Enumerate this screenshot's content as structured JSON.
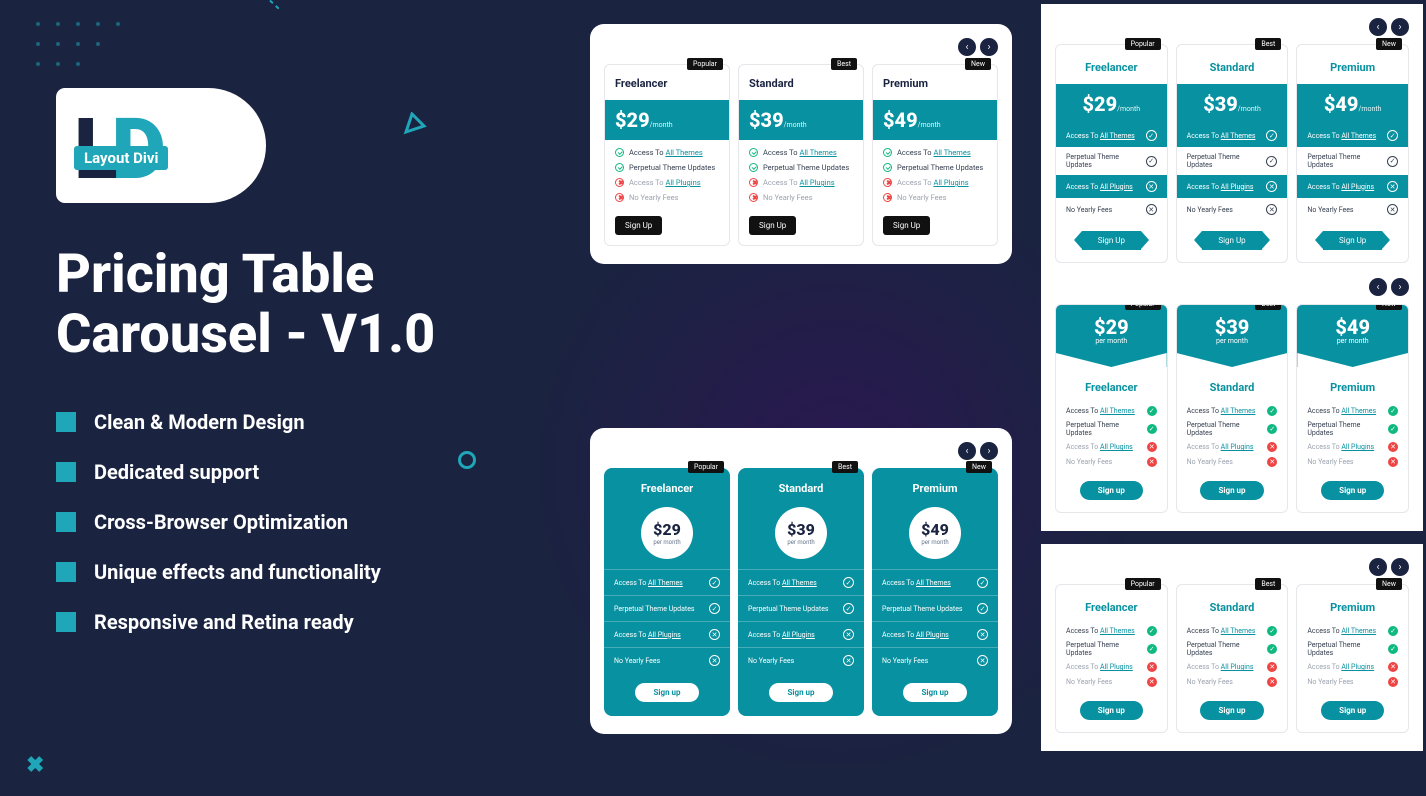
{
  "logo": {
    "text": "Layout Divi"
  },
  "headline": "Pricing Table Carousel - V1.0",
  "features": [
    "Clean & Modern Design",
    "Dedicated support",
    "Cross-Browser Optimization",
    "Unique effects and functionality",
    "Responsive and Retina ready"
  ],
  "colors": {
    "bg": "#1a2340",
    "accent": "#1fa6b8",
    "teal": "#0891a0",
    "green": "#10b981",
    "red": "#ef4444"
  },
  "plans": [
    {
      "badge": "Popular",
      "name": "Freelancer",
      "price": "$29",
      "period": "/month"
    },
    {
      "badge": "Best",
      "name": "Standard",
      "price": "$39",
      "period": "/month"
    },
    {
      "badge": "New",
      "name": "Premium",
      "price": "$49",
      "period": "/month"
    }
  ],
  "per_month": "per month",
  "plan_features": [
    {
      "label_pre": "Access To ",
      "label_link": "All Themes",
      "included": true
    },
    {
      "label_pre": "Perpetual Theme Updates",
      "label_link": "",
      "included": true
    },
    {
      "label_pre": "Access To ",
      "label_link": "All Plugins",
      "included": false
    },
    {
      "label_pre": "No Yearly Fees",
      "label_link": "",
      "included": false
    }
  ],
  "signup": "Sign Up",
  "signup_lc": "Sign up"
}
